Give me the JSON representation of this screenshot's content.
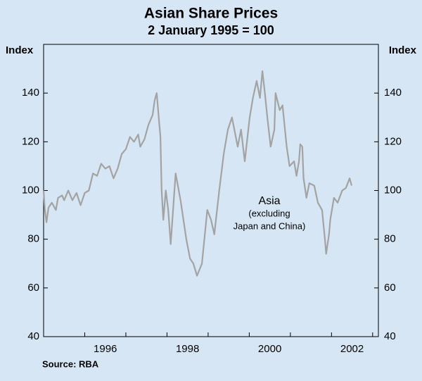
{
  "chart_data": {
    "type": "line",
    "title": "Asian Share Prices",
    "subtitle": "2 January 1995 = 100",
    "y_label": "Index",
    "y2_label": "Index",
    "source": "Source: RBA",
    "annotation": [
      "Asia",
      "(excluding",
      "Japan and China)"
    ],
    "xlim": [
      1995,
      2003.14
    ],
    "xticks": [
      {
        "value": 1996.5,
        "label": "1996"
      },
      {
        "value": 1998.5,
        "label": "1998"
      },
      {
        "value": 2000.5,
        "label": "2000"
      },
      {
        "value": 2002.5,
        "label": "2002"
      }
    ],
    "x_year_ticks": [
      1996,
      1997,
      1998,
      1999,
      2000,
      2001,
      2002,
      2003
    ],
    "ylim": [
      40,
      160
    ],
    "yticks": [
      40,
      60,
      80,
      100,
      120,
      140
    ],
    "y2lim": [
      40,
      160
    ],
    "y2ticks": [
      40,
      60,
      80,
      100,
      120,
      140
    ],
    "x": [
      1995.0,
      1995.03,
      1995.07,
      1995.12,
      1995.2,
      1995.3,
      1995.35,
      1995.45,
      1995.5,
      1995.6,
      1995.7,
      1995.8,
      1995.9,
      1996.0,
      1996.1,
      1996.2,
      1996.3,
      1996.4,
      1996.5,
      1996.6,
      1996.7,
      1996.8,
      1996.9,
      1997.0,
      1997.1,
      1997.2,
      1997.3,
      1997.35,
      1997.45,
      1997.55,
      1997.65,
      1997.7,
      1997.75,
      1997.8,
      1997.84,
      1997.87,
      1997.91,
      1997.97,
      1998.03,
      1998.09,
      1998.21,
      1998.33,
      1998.47,
      1998.56,
      1998.64,
      1998.73,
      1998.85,
      1998.98,
      1999.07,
      1999.15,
      1999.27,
      1999.38,
      1999.48,
      1999.58,
      1999.72,
      1999.8,
      1999.89,
      2000.01,
      2000.09,
      2000.18,
      2000.26,
      2000.32,
      2000.38,
      2000.44,
      2000.52,
      2000.61,
      2000.64,
      2000.74,
      2000.81,
      2000.91,
      2000.98,
      2001.09,
      2001.15,
      2001.21,
      2001.24,
      2001.29,
      2001.32,
      2001.39,
      2001.46,
      2001.58,
      2001.67,
      2001.77,
      2001.84,
      2001.87,
      2001.94,
      2001.97,
      2002.06,
      2002.15,
      2002.26,
      2002.35,
      2002.44,
      2002.49
    ],
    "series": [
      {
        "name": "Asia (excluding Japan and China)",
        "color": "#a3a3a3",
        "values": [
          100,
          92,
          87,
          93,
          95,
          92,
          97,
          98,
          96,
          100,
          96,
          99,
          94,
          99,
          100,
          107,
          106,
          111,
          109,
          110,
          105,
          109,
          115,
          117,
          122,
          120,
          123,
          118,
          121,
          127,
          131,
          137,
          140,
          130,
          122,
          100,
          88,
          100,
          92,
          78,
          107,
          96,
          80,
          72,
          70,
          65,
          70,
          92,
          88,
          82,
          100,
          115,
          125,
          130,
          118,
          125,
          112,
          130,
          138,
          145,
          138,
          149,
          140,
          130,
          118,
          125,
          140,
          133,
          135,
          118,
          110,
          112,
          106,
          112,
          119,
          118,
          105,
          97,
          103,
          102,
          95,
          92,
          80,
          74,
          82,
          88,
          97,
          95,
          100,
          101,
          105,
          102
        ]
      }
    ]
  }
}
